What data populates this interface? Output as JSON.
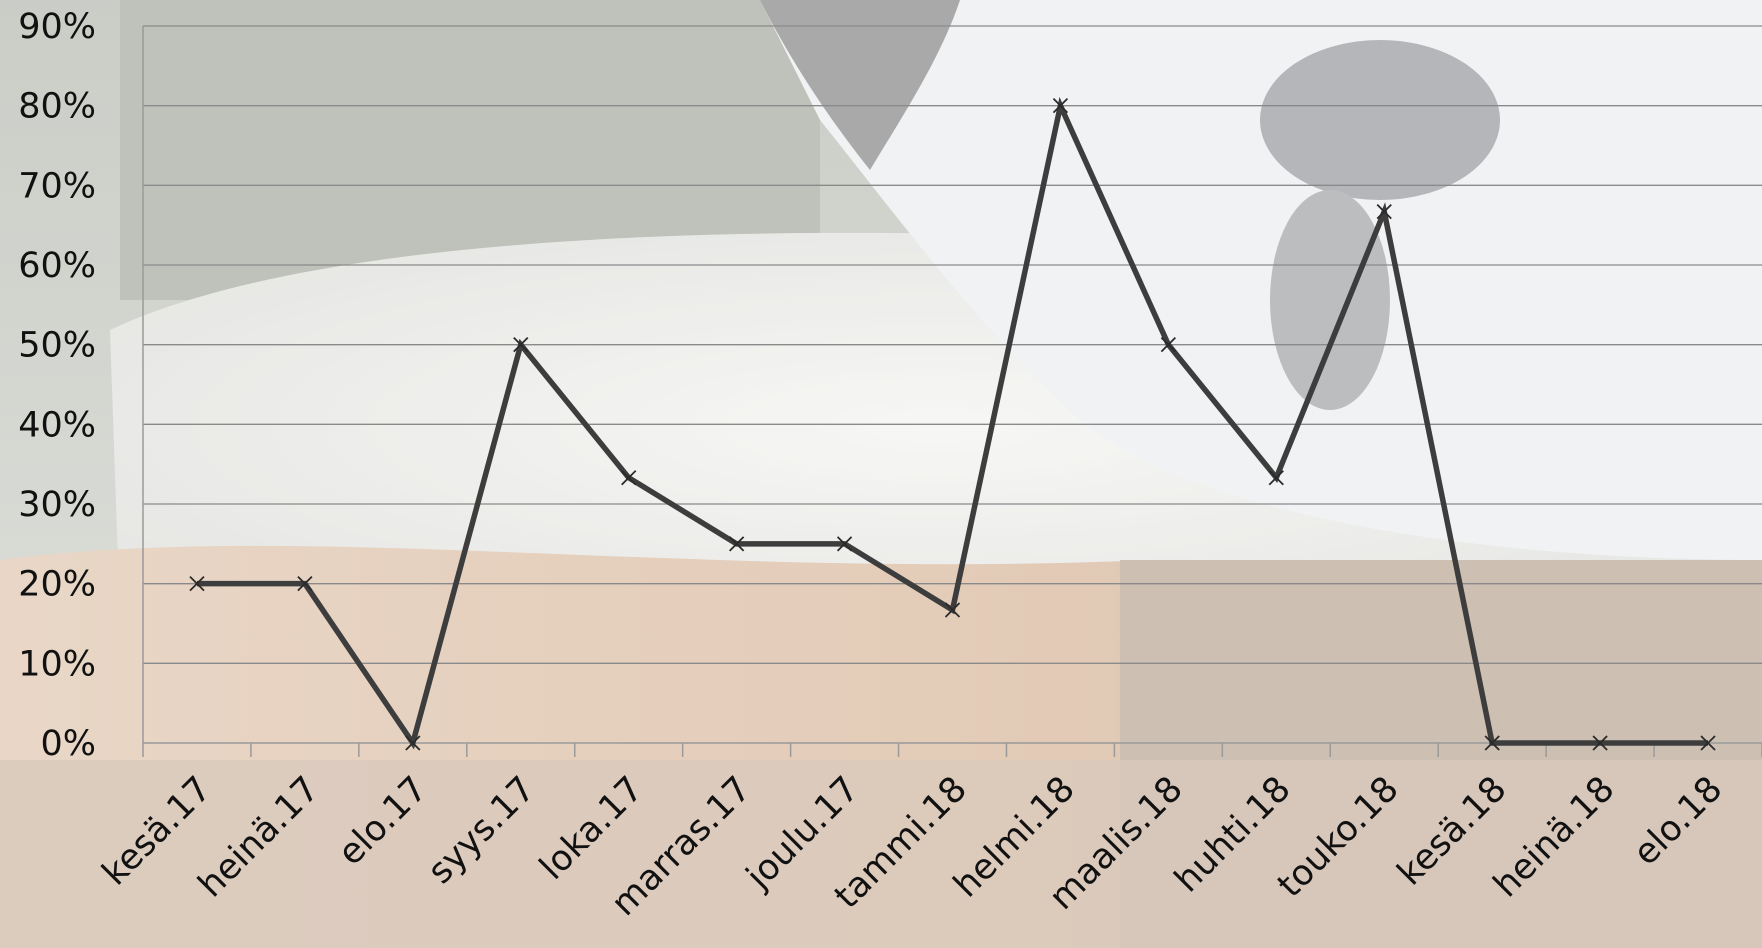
{
  "chart_data": {
    "type": "line",
    "title": "",
    "xlabel": "",
    "ylabel": "",
    "categories": [
      "kesä.17",
      "heinä.17",
      "elo.17",
      "syys.17",
      "loka.17",
      "marras.17",
      "joulu.17",
      "tammi.18",
      "helmi.18",
      "maalis.18",
      "huhti.18",
      "touko.18",
      "kesä.18",
      "heinä.18",
      "elo.18"
    ],
    "series": [
      {
        "values": [
          20,
          20,
          0,
          50,
          33.3,
          25,
          25,
          16.7,
          80,
          50,
          33.3,
          66.7,
          0,
          0,
          0
        ]
      }
    ],
    "ylim": [
      0,
      90
    ],
    "yticks": [
      0,
      10,
      20,
      30,
      40,
      50,
      60,
      70,
      80,
      90
    ],
    "ytick_labels": [
      "0%",
      "10%",
      "20%",
      "30%",
      "40%",
      "50%",
      "60%",
      "70%",
      "80%",
      "90%"
    ],
    "grid": true,
    "legend": "none",
    "marker": "x",
    "colors": {
      "line": "#3d3d3d",
      "grid": "#8a8a8a",
      "axis": "#9a9a9a"
    },
    "background": "photo of a calf (black, white and brown coat), faded"
  }
}
